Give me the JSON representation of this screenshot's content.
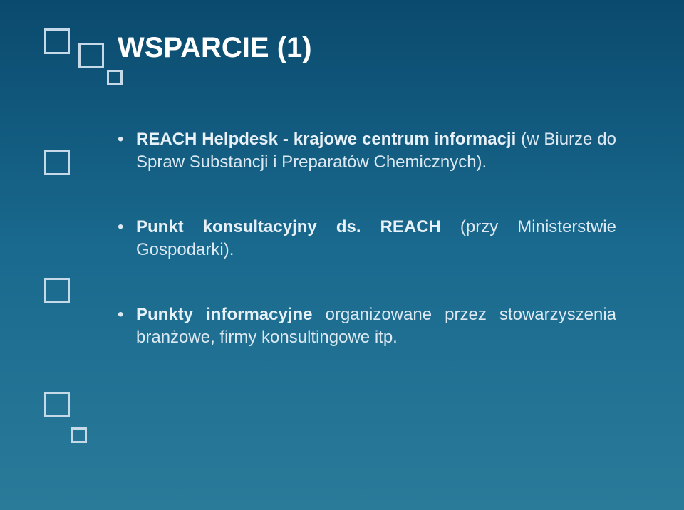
{
  "colors": {
    "background_top": "#0a4a6e",
    "background_bottom": "#2a7a9a",
    "square_border": "#c5d9e8",
    "title_color": "#ffffff",
    "body_text": "#dce9f2",
    "bold_text": "#e8f1f7"
  },
  "typography": {
    "title_fontsize": 40,
    "body_fontsize": 24,
    "font_family": "Trebuchet MS"
  },
  "title": "WSPARCIE (1)",
  "bullets": [
    {
      "bold": "REACH Helpdesk - krajowe centrum informacji",
      "rest": " (w Biurze do Spraw Substancji i Preparatów Chemicznych)."
    },
    {
      "bold_lead": "Punkt konsultacyjny ds. REACH",
      "rest": " (przy Ministerstwie Gospodarki)."
    },
    {
      "bold_lead2": "Punkty informacyjne",
      "rest2": " organizowane przez stowarzyszenia branżowe, firmy konsultingowe itp."
    }
  ]
}
